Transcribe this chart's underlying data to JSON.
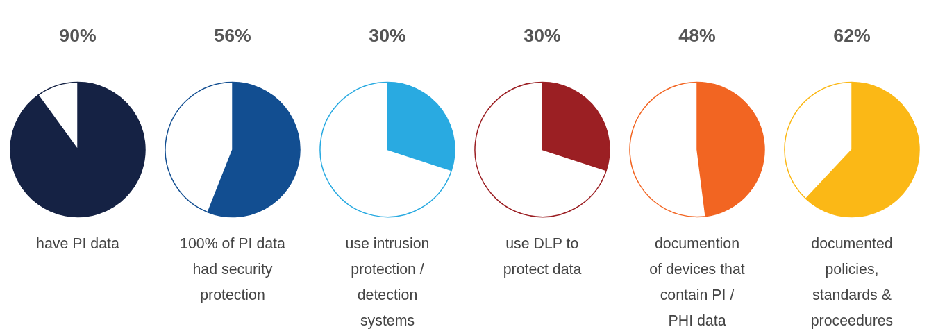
{
  "chart_data": [
    {
      "type": "pie",
      "categories": [
        null,
        null
      ],
      "values": [
        90,
        10
      ],
      "colors": [
        "#152244",
        "#ffffff"
      ],
      "value_labels": [
        "90%",
        null
      ],
      "xlabel": "have PI data"
    },
    {
      "type": "pie",
      "categories": [
        null,
        null
      ],
      "values": [
        56,
        44
      ],
      "colors": [
        "#124e91",
        "#ffffff"
      ],
      "value_labels": [
        "56%",
        null
      ],
      "xlabel": "100% of PI data\nhad security\nprotection"
    },
    {
      "type": "pie",
      "categories": [
        null,
        null
      ],
      "values": [
        30,
        70
      ],
      "colors": [
        "#29aae1",
        "#ffffff"
      ],
      "value_labels": [
        "30%",
        null
      ],
      "xlabel": "use intrusion\nprotection /\ndetection\nsystems"
    },
    {
      "type": "pie",
      "categories": [
        null,
        null
      ],
      "values": [
        30,
        70
      ],
      "colors": [
        "#9b1f23",
        "#ffffff"
      ],
      "value_labels": [
        "30%",
        null
      ],
      "xlabel": "use DLP to\nprotect data"
    },
    {
      "type": "pie",
      "categories": [
        null,
        null
      ],
      "values": [
        48,
        52
      ],
      "colors": [
        "#f26522",
        "#ffffff"
      ],
      "value_labels": [
        "48%",
        null
      ],
      "xlabel": "documention\nof devices that\ncontain PI /\nPHI data"
    },
    {
      "type": "pie",
      "categories": [
        null,
        null
      ],
      "values": [
        62,
        38
      ],
      "colors": [
        "#fbb816",
        "#ffffff"
      ],
      "value_labels": [
        "62%",
        null
      ],
      "xlabel": "documented\npolicies,\nstandards &\nproceedures"
    }
  ]
}
